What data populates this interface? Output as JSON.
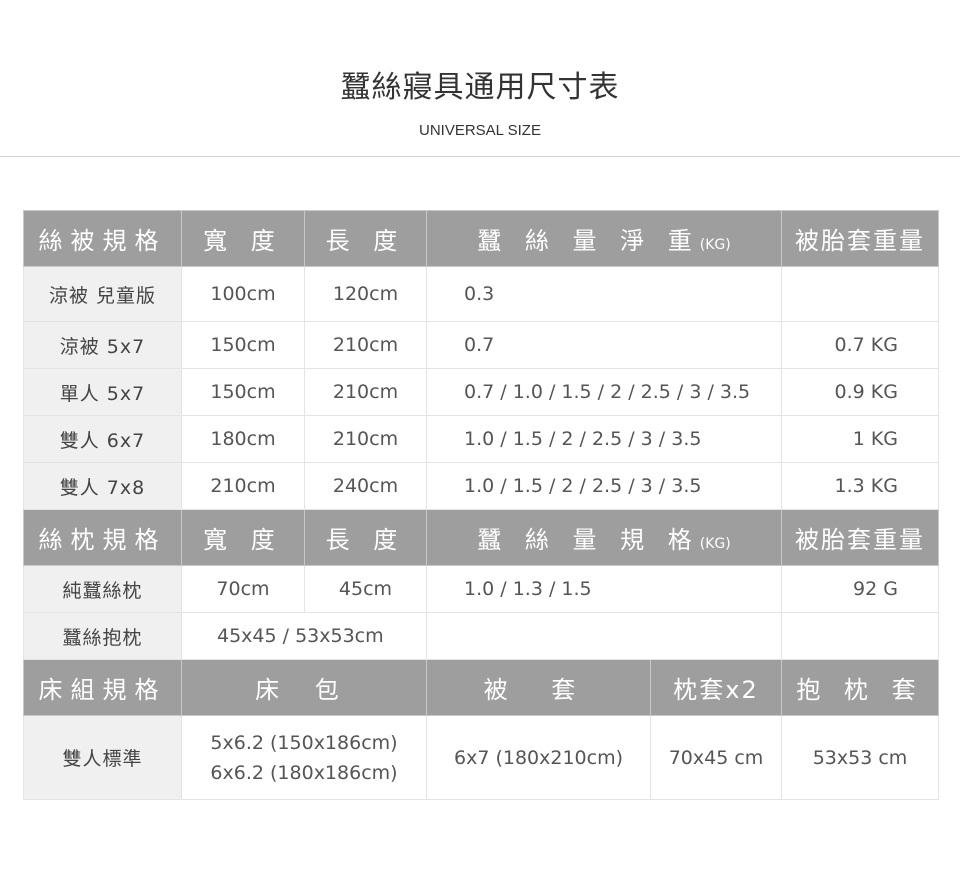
{
  "title": "蠶絲寢具通用尺寸表",
  "subtitle": "UNIVERSAL SIZE",
  "quilt": {
    "headers": [
      "絲被規格",
      "寬 度",
      "長 度",
      "蠶 絲 量 淨 重",
      "(KG)",
      "被胎套重量"
    ],
    "rows": [
      [
        "涼被 兒童版",
        "100cm",
        "120cm",
        "0.3",
        ""
      ],
      [
        "涼被 5x7",
        "150cm",
        "210cm",
        "0.7",
        "0.7 KG"
      ],
      [
        "單人 5x7",
        "150cm",
        "210cm",
        "0.7 / 1.0 / 1.5 / 2 / 2.5 / 3 / 3.5",
        "0.9 KG"
      ],
      [
        "雙人 6x7",
        "180cm",
        "210cm",
        "1.0 / 1.5 / 2 / 2.5 / 3 / 3.5",
        "1 KG"
      ],
      [
        "雙人 7x8",
        "210cm",
        "240cm",
        "1.0 / 1.5 / 2 / 2.5 / 3 / 3.5",
        "1.3 KG"
      ]
    ]
  },
  "pillow": {
    "headers": [
      "絲枕規格",
      "寬 度",
      "長 度",
      "蠶 絲 量 規 格",
      "(KG)",
      "被胎套重量"
    ],
    "rows": [
      [
        "純蠶絲枕",
        "70cm",
        "45cm",
        "1.0 / 1.3 / 1.5",
        "92 G"
      ],
      [
        "蠶絲抱枕",
        "45x45 / 53x53cm"
      ]
    ]
  },
  "bedding": {
    "headers": [
      "床組規格",
      "床 包",
      "被 套",
      "枕套x2",
      "抱 枕 套"
    ],
    "row": {
      "label": "雙人標準",
      "fitted_sheet": [
        "5x6.2 (150x186cm)",
        "6x6.2 (180x186cm)"
      ],
      "duvet_cover": "6x7 (180x210cm)",
      "pillowcase": "70x45 cm",
      "hug_pillowcase": "53x53 cm"
    }
  }
}
